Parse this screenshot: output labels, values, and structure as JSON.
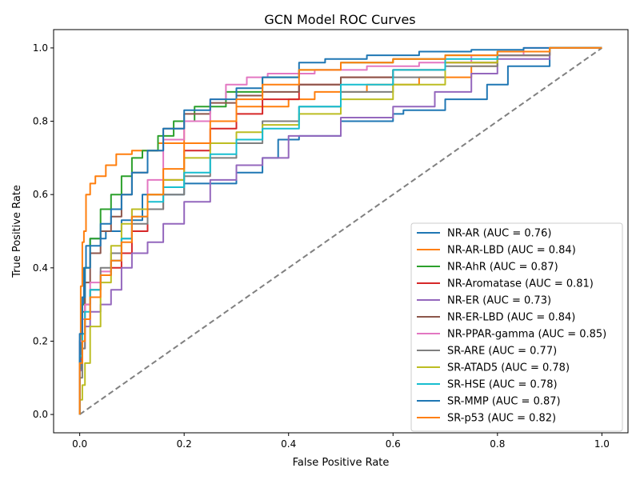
{
  "chart_data": {
    "type": "line",
    "title": "GCN Model ROC Curves",
    "xlabel": "False Positive Rate",
    "ylabel": "True Positive Rate",
    "xlim": [
      -0.05,
      1.05
    ],
    "ylim": [
      -0.05,
      1.05
    ],
    "xticks": [
      0.0,
      0.2,
      0.4,
      0.6,
      0.8,
      1.0
    ],
    "yticks": [
      0.0,
      0.2,
      0.4,
      0.6,
      0.8,
      1.0
    ],
    "xtick_labels": [
      "0.0",
      "0.2",
      "0.4",
      "0.6",
      "0.8",
      "1.0"
    ],
    "ytick_labels": [
      "0.0",
      "0.2",
      "0.4",
      "0.6",
      "0.8",
      "1.0"
    ],
    "grid": false,
    "legend_position": "lower-right",
    "reference_line": {
      "x": [
        0,
        1
      ],
      "y": [
        0,
        1
      ],
      "color": "#808080",
      "style": "dashed"
    },
    "series": [
      {
        "name": "NR-AR (AUC = 0.76)",
        "color": "#1f77b4",
        "x": [
          0,
          0.002,
          0.005,
          0.008,
          0.012,
          0.02,
          0.03,
          0.05,
          0.08,
          0.12,
          0.2,
          0.3,
          0.35,
          0.38,
          0.42,
          0.5,
          0.6,
          0.62,
          0.7,
          0.78,
          0.82,
          0.9,
          1.0
        ],
        "y": [
          0,
          0.12,
          0.2,
          0.3,
          0.4,
          0.46,
          0.48,
          0.48,
          0.5,
          0.53,
          0.6,
          0.63,
          0.66,
          0.7,
          0.75,
          0.76,
          0.8,
          0.82,
          0.83,
          0.86,
          0.9,
          0.95,
          1.0
        ]
      },
      {
        "name": "NR-AR-LBD (AUC = 0.84)",
        "color": "#ff7f0e",
        "x": [
          0,
          0.002,
          0.005,
          0.008,
          0.012,
          0.02,
          0.03,
          0.05,
          0.07,
          0.1,
          0.15,
          0.2,
          0.3,
          0.35,
          0.4,
          0.45,
          0.55,
          0.65,
          0.75,
          0.8,
          0.9,
          1.0
        ],
        "y": [
          0,
          0.2,
          0.35,
          0.47,
          0.5,
          0.6,
          0.63,
          0.65,
          0.68,
          0.71,
          0.72,
          0.74,
          0.8,
          0.84,
          0.84,
          0.86,
          0.88,
          0.9,
          0.92,
          0.95,
          0.98,
          1.0
        ]
      },
      {
        "name": "NR-AhR (AUC = 0.87)",
        "color": "#2ca02c",
        "x": [
          0,
          0.005,
          0.01,
          0.02,
          0.04,
          0.06,
          0.08,
          0.1,
          0.12,
          0.15,
          0.18,
          0.22,
          0.28,
          0.35,
          0.42,
          0.5,
          0.6,
          0.7,
          0.8,
          0.9,
          1.0
        ],
        "y": [
          0,
          0.2,
          0.3,
          0.4,
          0.48,
          0.56,
          0.6,
          0.65,
          0.7,
          0.72,
          0.76,
          0.8,
          0.84,
          0.88,
          0.92,
          0.94,
          0.96,
          0.97,
          0.98,
          0.99,
          1.0
        ]
      },
      {
        "name": "NR-Aromatase (AUC = 0.81)",
        "color": "#d62728",
        "x": [
          0,
          0.005,
          0.01,
          0.02,
          0.04,
          0.06,
          0.08,
          0.1,
          0.13,
          0.16,
          0.2,
          0.25,
          0.3,
          0.35,
          0.42,
          0.5,
          0.6,
          0.7,
          0.8,
          0.9,
          1.0
        ],
        "y": [
          0,
          0.15,
          0.22,
          0.3,
          0.34,
          0.38,
          0.4,
          0.44,
          0.5,
          0.56,
          0.64,
          0.72,
          0.78,
          0.82,
          0.86,
          0.9,
          0.92,
          0.94,
          0.96,
          0.98,
          1.0
        ]
      },
      {
        "name": "NR-ER (AUC = 0.73)",
        "color": "#9467bd",
        "x": [
          0,
          0.005,
          0.01,
          0.02,
          0.04,
          0.06,
          0.08,
          0.1,
          0.13,
          0.16,
          0.2,
          0.25,
          0.3,
          0.35,
          0.4,
          0.5,
          0.6,
          0.68,
          0.75,
          0.8,
          0.9,
          1.0
        ],
        "y": [
          0,
          0.12,
          0.18,
          0.24,
          0.28,
          0.3,
          0.34,
          0.4,
          0.44,
          0.47,
          0.52,
          0.58,
          0.64,
          0.68,
          0.7,
          0.76,
          0.81,
          0.84,
          0.88,
          0.93,
          0.97,
          1.0
        ]
      },
      {
        "name": "NR-ER-LBD (AUC = 0.84)",
        "color": "#8c564b",
        "x": [
          0,
          0.005,
          0.01,
          0.02,
          0.04,
          0.06,
          0.08,
          0.1,
          0.13,
          0.16,
          0.2,
          0.25,
          0.3,
          0.35,
          0.42,
          0.5,
          0.6,
          0.7,
          0.8,
          0.9,
          1.0
        ],
        "y": [
          0,
          0.2,
          0.28,
          0.36,
          0.44,
          0.5,
          0.54,
          0.6,
          0.66,
          0.72,
          0.78,
          0.82,
          0.85,
          0.87,
          0.88,
          0.9,
          0.92,
          0.94,
          0.96,
          0.98,
          1.0
        ]
      },
      {
        "name": "NR-PPAR-gamma (AUC = 0.85)",
        "color": "#e377c2",
        "x": [
          0,
          0.005,
          0.01,
          0.02,
          0.04,
          0.06,
          0.08,
          0.1,
          0.13,
          0.16,
          0.2,
          0.25,
          0.28,
          0.32,
          0.36,
          0.45,
          0.55,
          0.65,
          0.75,
          0.85,
          1.0
        ],
        "y": [
          0,
          0.2,
          0.26,
          0.3,
          0.36,
          0.39,
          0.42,
          0.48,
          0.56,
          0.64,
          0.75,
          0.8,
          0.86,
          0.9,
          0.92,
          0.93,
          0.94,
          0.95,
          0.96,
          0.98,
          1.0
        ]
      },
      {
        "name": "SR-ARE (AUC = 0.77)",
        "color": "#7f7f7f",
        "x": [
          0,
          0.005,
          0.01,
          0.02,
          0.04,
          0.06,
          0.08,
          0.1,
          0.13,
          0.16,
          0.2,
          0.25,
          0.3,
          0.35,
          0.42,
          0.5,
          0.6,
          0.7,
          0.8,
          0.9,
          1.0
        ],
        "y": [
          0,
          0.1,
          0.18,
          0.26,
          0.34,
          0.4,
          0.44,
          0.48,
          0.52,
          0.56,
          0.6,
          0.65,
          0.7,
          0.74,
          0.8,
          0.84,
          0.88,
          0.92,
          0.95,
          0.98,
          1.0
        ]
      },
      {
        "name": "SR-ATAD5 (AUC = 0.78)",
        "color": "#bcbd22",
        "x": [
          0,
          0.005,
          0.01,
          0.02,
          0.04,
          0.06,
          0.08,
          0.1,
          0.13,
          0.16,
          0.2,
          0.25,
          0.3,
          0.35,
          0.42,
          0.5,
          0.6,
          0.7,
          0.8,
          0.9,
          1.0
        ],
        "y": [
          0,
          0.04,
          0.08,
          0.14,
          0.24,
          0.36,
          0.46,
          0.52,
          0.56,
          0.6,
          0.64,
          0.7,
          0.74,
          0.77,
          0.79,
          0.82,
          0.86,
          0.9,
          0.96,
          0.99,
          1.0
        ]
      },
      {
        "name": "SR-HSE (AUC = 0.78)",
        "color": "#17becf",
        "x": [
          0,
          0.005,
          0.01,
          0.02,
          0.04,
          0.06,
          0.08,
          0.1,
          0.13,
          0.16,
          0.2,
          0.25,
          0.3,
          0.35,
          0.42,
          0.5,
          0.6,
          0.7,
          0.8,
          0.9,
          1.0
        ],
        "y": [
          0,
          0.16,
          0.22,
          0.28,
          0.34,
          0.38,
          0.42,
          0.48,
          0.54,
          0.58,
          0.62,
          0.66,
          0.71,
          0.75,
          0.78,
          0.84,
          0.9,
          0.94,
          0.97,
          0.99,
          1.0
        ]
      },
      {
        "name": "SR-MMP (AUC = 0.87)",
        "color": "#1f77b4",
        "x": [
          0,
          0.005,
          0.01,
          0.02,
          0.04,
          0.06,
          0.08,
          0.1,
          0.13,
          0.16,
          0.2,
          0.25,
          0.3,
          0.35,
          0.42,
          0.47,
          0.55,
          0.65,
          0.75,
          0.85,
          1.0
        ],
        "y": [
          0,
          0.22,
          0.32,
          0.4,
          0.46,
          0.52,
          0.56,
          0.6,
          0.66,
          0.72,
          0.78,
          0.83,
          0.86,
          0.89,
          0.92,
          0.96,
          0.97,
          0.98,
          0.99,
          0.995,
          1.0
        ]
      },
      {
        "name": "SR-p53 (AUC = 0.82)",
        "color": "#ff7f0e",
        "x": [
          0,
          0.005,
          0.01,
          0.02,
          0.04,
          0.06,
          0.08,
          0.1,
          0.13,
          0.16,
          0.2,
          0.25,
          0.3,
          0.35,
          0.42,
          0.5,
          0.6,
          0.7,
          0.8,
          0.9,
          1.0
        ],
        "y": [
          0,
          0.14,
          0.2,
          0.26,
          0.32,
          0.38,
          0.42,
          0.47,
          0.54,
          0.6,
          0.67,
          0.74,
          0.8,
          0.86,
          0.9,
          0.94,
          0.96,
          0.97,
          0.98,
          0.99,
          1.0
        ]
      }
    ]
  }
}
